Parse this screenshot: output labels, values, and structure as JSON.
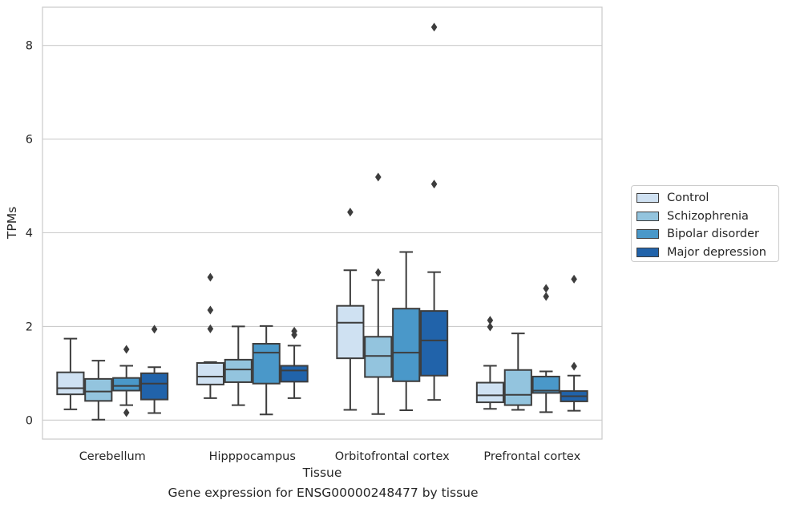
{
  "chart_data": {
    "type": "box",
    "xlabel": "Tissue",
    "ylabel": "TPMs",
    "caption": "Gene expression for ENSG00000248477 by tissue",
    "categories": [
      "Cerebellum",
      "Hipppocampus",
      "Orbitofrontal cortex",
      "Prefrontal cortex"
    ],
    "ylim": [
      -0.4,
      8.85
    ],
    "yticks": [
      "0",
      "2",
      "4",
      "6",
      "8"
    ],
    "grid": true,
    "legend_position": "right",
    "series": [
      {
        "name": "Control",
        "color": "#cfe1f2",
        "boxes": [
          {
            "low": 0.23,
            "q1": 0.55,
            "median": 0.68,
            "q3": 1.02,
            "high": 1.74,
            "outliers": []
          },
          {
            "low": 0.47,
            "q1": 0.76,
            "median": 0.93,
            "q3": 1.22,
            "high": 1.24,
            "outliers": [
              1.95,
              2.35,
              3.05
            ]
          },
          {
            "low": 0.22,
            "q1": 1.32,
            "median": 2.08,
            "q3": 2.44,
            "high": 3.2,
            "outliers": [
              4.44
            ]
          },
          {
            "low": 0.24,
            "q1": 0.38,
            "median": 0.53,
            "q3": 0.8,
            "high": 1.16,
            "outliers": [
              1.99,
              2.13
            ]
          }
        ]
      },
      {
        "name": "Schizophrenia",
        "color": "#93c4de",
        "boxes": [
          {
            "low": 0.01,
            "q1": 0.41,
            "median": 0.61,
            "q3": 0.88,
            "high": 1.27,
            "outliers": []
          },
          {
            "low": 0.32,
            "q1": 0.81,
            "median": 1.08,
            "q3": 1.29,
            "high": 2.0,
            "outliers": []
          },
          {
            "low": 0.13,
            "q1": 0.92,
            "median": 1.37,
            "q3": 1.78,
            "high": 2.99,
            "outliers": [
              3.15,
              5.19
            ]
          },
          {
            "low": 0.22,
            "q1": 0.32,
            "median": 0.54,
            "q3": 1.07,
            "high": 1.85,
            "outliers": []
          }
        ]
      },
      {
        "name": "Bipolar disorder",
        "color": "#4a98c9",
        "boxes": [
          {
            "low": 0.32,
            "q1": 0.63,
            "median": 0.73,
            "q3": 0.9,
            "high": 1.16,
            "outliers": [
              0.16,
              1.51
            ]
          },
          {
            "low": 0.12,
            "q1": 0.78,
            "median": 1.44,
            "q3": 1.63,
            "high": 2.01,
            "outliers": []
          },
          {
            "low": 0.21,
            "q1": 0.83,
            "median": 1.44,
            "q3": 2.38,
            "high": 3.59,
            "outliers": []
          },
          {
            "low": 0.17,
            "q1": 0.58,
            "median": 0.63,
            "q3": 0.93,
            "high": 1.04,
            "outliers": [
              2.64,
              2.81
            ]
          }
        ]
      },
      {
        "name": "Major depression",
        "color": "#2163aa",
        "boxes": [
          {
            "low": 0.15,
            "q1": 0.44,
            "median": 0.78,
            "q3": 1.0,
            "high": 1.13,
            "outliers": [
              1.94
            ]
          },
          {
            "low": 0.47,
            "q1": 0.82,
            "median": 1.06,
            "q3": 1.16,
            "high": 1.59,
            "outliers": [
              1.82,
              1.9
            ]
          },
          {
            "low": 0.43,
            "q1": 0.95,
            "median": 1.7,
            "q3": 2.33,
            "high": 3.16,
            "outliers": [
              5.04,
              8.39
            ]
          },
          {
            "low": 0.2,
            "q1": 0.4,
            "median": 0.51,
            "q3": 0.62,
            "high": 0.95,
            "outliers": [
              1.15,
              3.01
            ]
          }
        ]
      }
    ]
  }
}
